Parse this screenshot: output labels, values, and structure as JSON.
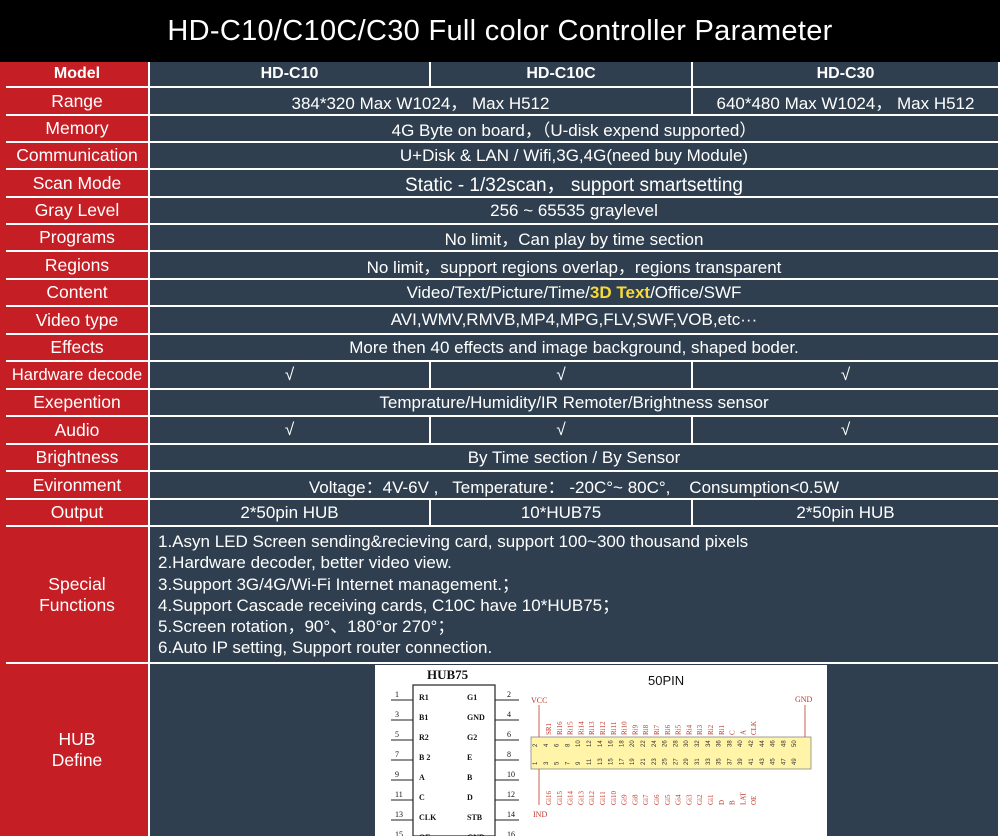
{
  "title": "HD-C10/C10C/C30 Full color Controller Parameter",
  "header": {
    "label": "Model",
    "c10": "HD-C10",
    "c10c": "HD-C10C",
    "c30": "HD-C30"
  },
  "rows": {
    "range": {
      "label": "Range",
      "c10": "384*320 Max W1024， Max H512",
      "c30": "640*480 Max W1024， Max H512"
    },
    "memory": {
      "label": "Memory",
      "value": "4G Byte on board，（U-disk expend supported）"
    },
    "communication": {
      "label": "Communication",
      "value": "U+Disk & LAN / Wifi,3G,4G(need buy Module)"
    },
    "scan": {
      "label": "Scan Mode",
      "value": "Static - 1/32scan， support smartsetting"
    },
    "gray": {
      "label": "Gray Level",
      "value": "256 ~ 65535 graylevel"
    },
    "programs": {
      "label": "Programs",
      "value": "No limit，Can play by time section"
    },
    "regions": {
      "label": "Regions",
      "value": "No limit，support regions overlap，regions transparent"
    },
    "content": {
      "label": "Content",
      "value_a": "Video/Text/Picture/Time/",
      "value_hl": "3D Text",
      "value_b": "/Office/SWF"
    },
    "video": {
      "label": "Video type",
      "value": "AVI,WMV,RMVB,MP4,MPG,FLV,SWF,VOB,etc···"
    },
    "effects": {
      "label": "Effects",
      "value": "More then 40 effects and image background, shaped boder."
    },
    "hwdecode": {
      "label": "Hardware decode",
      "c10": "√",
      "c10c": "√",
      "c30": "√"
    },
    "expention": {
      "label": "Exepention",
      "value": "Temprature/Humidity/IR Remoter/Brightness sensor"
    },
    "audio": {
      "label": "Audio",
      "c10": "√",
      "c10c": "√",
      "c30": "√"
    },
    "brightness": {
      "label": "Brightness",
      "value": "By Time section / By Sensor"
    },
    "environment": {
      "label": "Evironment",
      "value": "Voltage：4V-6V ,   Temperature： -20C°~ 80C°,    Consumption<0.5W"
    },
    "output": {
      "label": "Output",
      "c10": "2*50pin HUB",
      "c10c": "10*HUB75",
      "c30": "2*50pin HUB"
    }
  },
  "special": {
    "label_line1": "Special",
    "label_line2": "Functions",
    "items": [
      "1.Asyn LED Screen sending&recieving card, support 100~300 thousand pixels",
      "2.Hardware decoder, better video view.",
      "3.Support 3G/4G/Wi-Fi Internet management.；",
      "4.Support Cascade receiving cards, C10C have 10*HUB75；",
      "5.Screen rotation，90°、180°or 270°；",
      "6.Auto IP setting, Support router connection."
    ]
  },
  "hub": {
    "label_line1": "HUB",
    "label_line2": "Define",
    "hub75_title": "HUB75",
    "hub75_pins_left": [
      {
        "num": "1",
        "name": "R1"
      },
      {
        "num": "3",
        "name": "B1"
      },
      {
        "num": "5",
        "name": "R2"
      },
      {
        "num": "7",
        "name": "B 2"
      },
      {
        "num": "9",
        "name": "A"
      },
      {
        "num": "11",
        "name": "C"
      },
      {
        "num": "13",
        "name": "CLK"
      },
      {
        "num": "15",
        "name": "OE"
      }
    ],
    "hub75_pins_right": [
      {
        "num": "2",
        "name": "G1"
      },
      {
        "num": "4",
        "name": "GND"
      },
      {
        "num": "6",
        "name": "G2"
      },
      {
        "num": "8",
        "name": "E"
      },
      {
        "num": "10",
        "name": "B"
      },
      {
        "num": "12",
        "name": "D"
      },
      {
        "num": "14",
        "name": "STB"
      },
      {
        "num": "16",
        "name": "GND"
      }
    ],
    "pin50_title": "50PIN",
    "pin50_vcc": "VCC",
    "pin50_gnd": "GND",
    "pin50_ind": "IND",
    "pin50_top_labels": [
      "SR1",
      "Ri16",
      "Ri15",
      "Ri14",
      "Ri13",
      "Ri12",
      "Ri11",
      "Ri10",
      "Ri9",
      "Ri8",
      "Ri7",
      "Ri6",
      "Ri5",
      "Ri4",
      "Ri3",
      "Ri2",
      "Ri1",
      "C",
      "A",
      "CLK"
    ],
    "pin50_bottom_labels": [
      "Gi16",
      "Gi15",
      "Gi14",
      "Gi13",
      "Gi12",
      "Gi11",
      "Gi10",
      "Gi9",
      "Gi8",
      "Gi7",
      "Gi6",
      "Gi5",
      "Gi4",
      "Gi3",
      "Gi2",
      "Gi1",
      "D",
      "B",
      "LAT",
      "OE"
    ],
    "pin50_even": [
      "2",
      "4",
      "6",
      "8",
      "10",
      "12",
      "14",
      "16",
      "18",
      "20",
      "22",
      "24",
      "26",
      "28",
      "30",
      "32",
      "34",
      "36",
      "38",
      "40",
      "42",
      "44",
      "46",
      "48",
      "50"
    ],
    "pin50_odd": [
      "1",
      "3",
      "5",
      "7",
      "9",
      "11",
      "13",
      "15",
      "17",
      "19",
      "21",
      "23",
      "25",
      "27",
      "29",
      "31",
      "33",
      "35",
      "37",
      "39",
      "41",
      "43",
      "45",
      "47",
      "49"
    ]
  }
}
